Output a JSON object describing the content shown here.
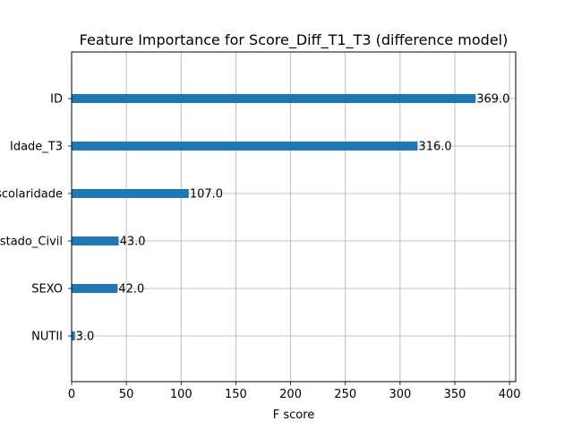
{
  "chart_data": {
    "type": "bar",
    "orientation": "horizontal",
    "title": "Feature Importance for Score_Diff_T1_T3 (difference model)",
    "xlabel": "F score",
    "ylabel": "",
    "categories": [
      "ID",
      "Idade_T3",
      "Escolaridade",
      "Estado_Civil",
      "SEXO",
      "NUTII"
    ],
    "values": [
      369.0,
      316.0,
      107.0,
      43.0,
      42.0,
      3.0
    ],
    "value_labels": [
      "369.0",
      "316.0",
      "107.0",
      "43.0",
      "42.0",
      "3.0"
    ],
    "xlim": [
      0,
      405.6
    ],
    "xticks": [
      0,
      50,
      100,
      150,
      200,
      250,
      300,
      350,
      400
    ],
    "grid": true,
    "bar_color": "#1f77b4",
    "grid_color": "#b0b0b0"
  }
}
